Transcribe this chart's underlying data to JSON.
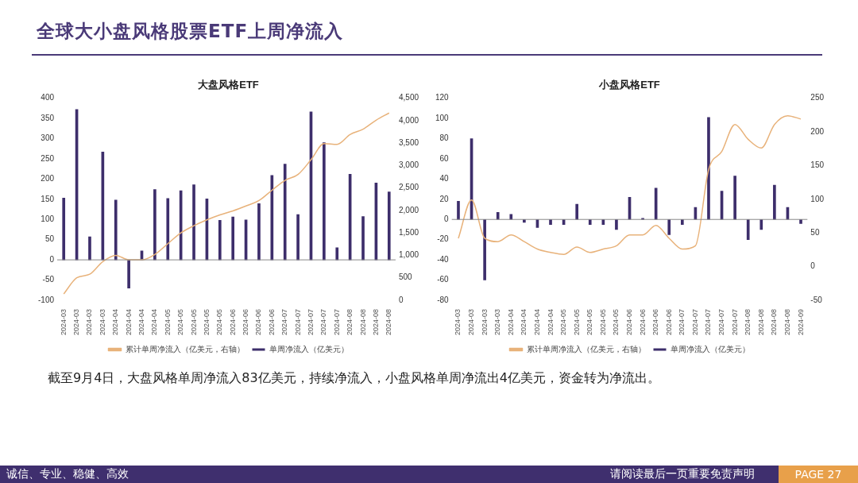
{
  "chart_data": [
    {
      "type": "other",
      "title": "全球大小盘风格股票ETF上周净流入",
      "annotations": [
        "截至9月4日，大盘风格单周净流入83亿美元，持续净流入，小盘风格单周净流出4亿美元，资金转为净流出。",
        "诚信、专业、稳健、高效",
        "请阅读最后一页重要免责声明",
        "PAGE 27"
      ]
    },
    {
      "type": "bar",
      "title": "大盘风格ETF",
      "categories": [
        "2024-03",
        "2024-03",
        "2024-03",
        "2024-03",
        "2024-04",
        "2024-04",
        "2024-04",
        "2024-04",
        "2024-05",
        "2024-05",
        "2024-05",
        "2024-05",
        "2024-05",
        "2024-06",
        "2024-06",
        "2024-06",
        "2024-06",
        "2024-07",
        "2024-07",
        "2024-07",
        "2024-07",
        "2024-07",
        "2024-08",
        "2024-08",
        "2024-08",
        "2024-08"
      ],
      "series": [
        {
          "name": "单周净流入（亿美元）",
          "type": "bar",
          "color": "#3d2e6b",
          "values": [
            153,
            372,
            57,
            267,
            148,
            -70,
            22,
            174,
            152,
            171,
            186,
            151,
            98,
            106,
            99,
            139,
            209,
            237,
            112,
            366,
            290,
            30,
            212,
            107,
            190,
            168
          ]
        },
        {
          "name": "累计单周净流入（亿美元，右轴）",
          "type": "line",
          "axis": "y2",
          "color": "#e8b27a",
          "values": [
            140,
            500,
            580,
            860,
            1000,
            900,
            900,
            1020,
            1260,
            1500,
            1660,
            1790,
            1900,
            1990,
            2100,
            2220,
            2450,
            2670,
            2800,
            3130,
            3490,
            3470,
            3690,
            3810,
            4010,
            4170
          ]
        }
      ],
      "ylim": [
        -100,
        400
      ],
      "yticks": [
        -100,
        -50,
        0,
        50,
        100,
        150,
        200,
        250,
        300,
        350,
        400
      ],
      "y2lim": [
        0,
        4500
      ],
      "y2ticks": [
        0,
        500,
        {
          "value": 1000,
          "label": "1,000"
        },
        {
          "value": 1500,
          "label": "1,500"
        },
        {
          "value": 2000,
          "label": "2,000"
        },
        {
          "value": 2500,
          "label": "2,500"
        },
        {
          "value": 3000,
          "label": "3,000"
        },
        {
          "value": 3500,
          "label": "3,500"
        },
        {
          "value": 4000,
          "label": "4,000"
        },
        {
          "value": 4500,
          "label": "4,500"
        }
      ],
      "ref_lines": [
        {
          "axis": "y",
          "value": 0,
          "color": "#888888"
        }
      ],
      "legend": "bottom",
      "grid": false
    },
    {
      "type": "bar",
      "title": "小盘风格ETF",
      "categories": [
        "2024-03",
        "2024-03",
        "2024-03",
        "2024-03",
        "2024-04",
        "2024-04",
        "2024-04",
        "2024-04",
        "2024-05",
        "2024-05",
        "2024-05",
        "2024-05",
        "2024-05",
        "2024-06",
        "2024-06",
        "2024-06",
        "2024-06",
        "2024-07",
        "2024-07",
        "2024-07",
        "2024-07",
        "2024-07",
        "2024-08",
        "2024-08",
        "2024-08",
        "2024-08",
        "2024-09"
      ],
      "series": [
        {
          "name": "单周净流入（亿美元）",
          "type": "bar",
          "color": "#3d2e6b",
          "values": [
            18,
            80,
            -60,
            7,
            5,
            -3,
            -8,
            -5,
            -5,
            15,
            -5,
            -5,
            -10,
            22,
            1,
            31,
            -15,
            -5,
            12,
            101,
            28,
            43,
            -20,
            -10,
            34,
            12,
            -4
          ]
        },
        {
          "name": "累计单周净流入（亿美元，右轴）",
          "type": "line",
          "axis": "y2",
          "color": "#e8b27a",
          "values": [
            42,
            99,
            42,
            37,
            47,
            37,
            26,
            21,
            18,
            29,
            21,
            26,
            31,
            47,
            47,
            61,
            42,
            26,
            31,
            144,
            171,
            211,
            189,
            176,
            211,
            224,
            219
          ]
        }
      ],
      "ylim": [
        -80,
        120
      ],
      "yticks": [
        -80,
        -60,
        -40,
        -20,
        0,
        20,
        40,
        60,
        80,
        100,
        120
      ],
      "y2lim": [
        -50,
        250
      ],
      "y2ticks": [
        -50,
        0,
        50,
        100,
        150,
        200,
        250
      ],
      "ref_lines": [
        {
          "axis": "y",
          "value": 0,
          "color": "#888888"
        }
      ],
      "legend": "bottom",
      "grid": false
    }
  ]
}
